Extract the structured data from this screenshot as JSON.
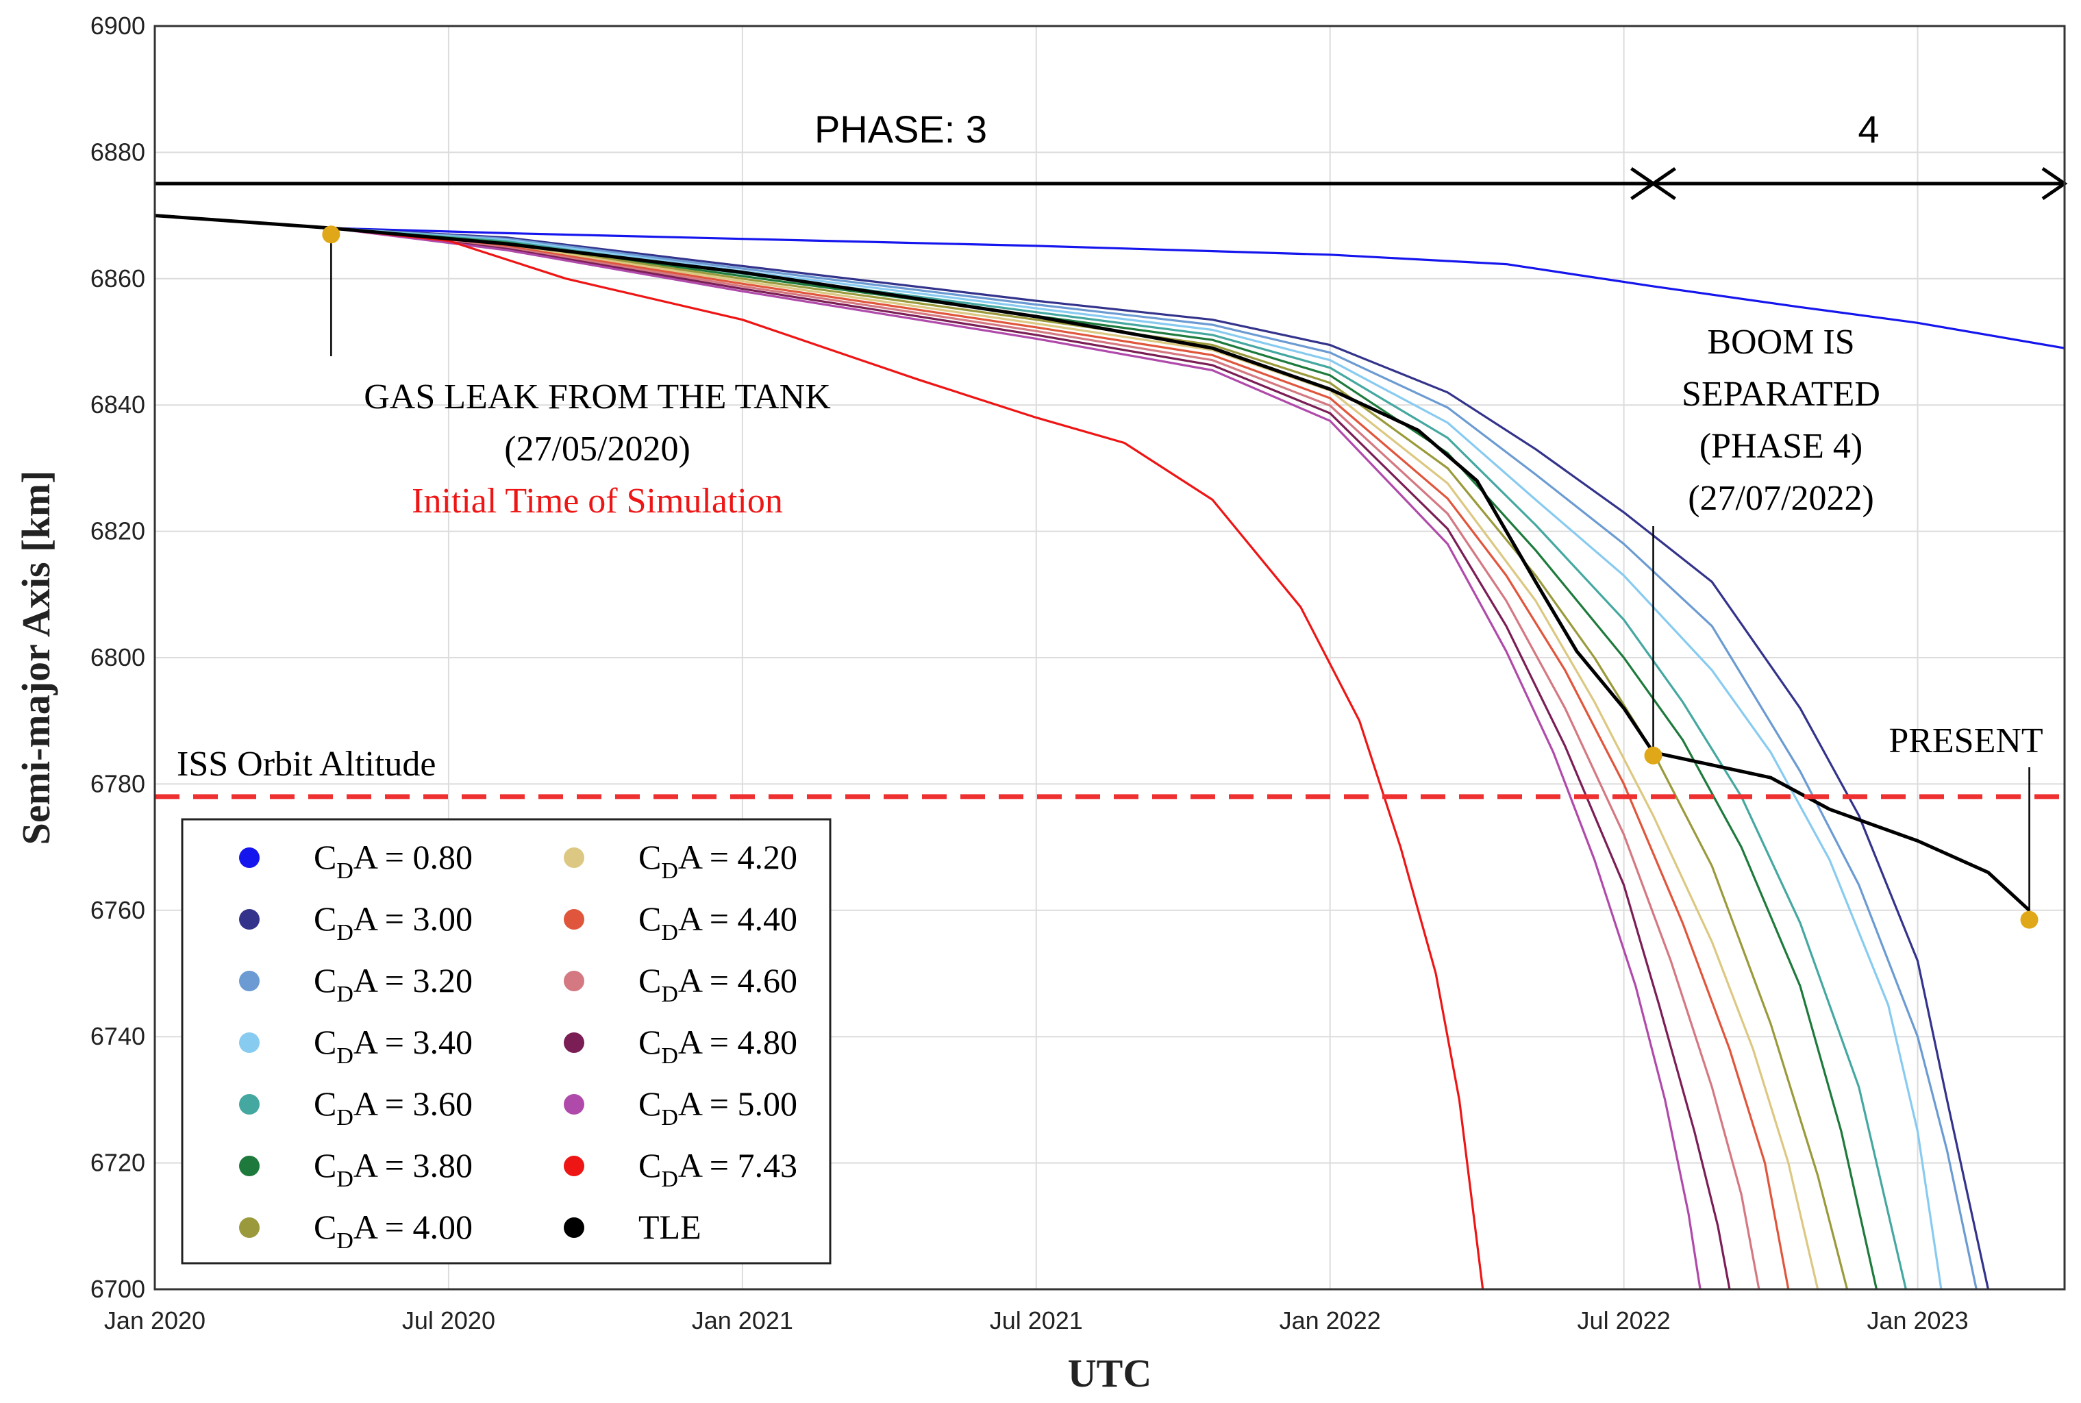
{
  "chart_data": {
    "type": "line",
    "xlabel": "UTC",
    "ylabel": "Semi-major Axis [km]",
    "xlim": [
      2020.0,
      2023.25
    ],
    "ylim": [
      6700,
      6900
    ],
    "y_ticks": [
      6700,
      6720,
      6740,
      6760,
      6780,
      6800,
      6820,
      6840,
      6860,
      6880,
      6900
    ],
    "x_ticks": [
      {
        "value": 2020.0,
        "label": "Jan 2020"
      },
      {
        "value": 2020.5,
        "label": "Jul 2020"
      },
      {
        "value": 2021.0,
        "label": "Jan 2021"
      },
      {
        "value": 2021.5,
        "label": "Jul 2021"
      },
      {
        "value": 2022.0,
        "label": "Jan 2022"
      },
      {
        "value": 2022.5,
        "label": "Jul 2022"
      },
      {
        "value": 2023.0,
        "label": "Jan 2023"
      }
    ],
    "grid": true,
    "legend_position": "bottom-left",
    "series": [
      {
        "name": "CDA = 0.80",
        "value": "0.80",
        "color": "#1515ee",
        "x": [
          2020.0,
          2020.3,
          2020.6,
          2021.0,
          2021.5,
          2022.0,
          2022.3,
          2022.55,
          2022.8,
          2023.0,
          2023.25
        ],
        "y": [
          6870,
          6868,
          6867.2,
          6866.3,
          6865.2,
          6863.8,
          6862.3,
          6858.8,
          6855.5,
          6853.0,
          6849.0
        ]
      },
      {
        "name": "CDA = 3.00",
        "value": "3.00",
        "color": "#33338c",
        "x": [
          2020.0,
          2020.3,
          2020.6,
          2021.0,
          2021.5,
          2021.8,
          2022.0,
          2022.2,
          2022.35,
          2022.5,
          2022.65,
          2022.8,
          2022.9,
          2023.0,
          2023.05,
          2023.12
        ],
        "y": [
          6870,
          6868,
          6866.5,
          6862,
          6856.5,
          6853.5,
          6849.5,
          6842,
          6833,
          6823,
          6812,
          6792,
          6775,
          6752,
          6730,
          6700
        ]
      },
      {
        "name": "CDA = 3.20",
        "value": "3.20",
        "color": "#6b9bd2",
        "x": [
          2020.0,
          2020.3,
          2020.6,
          2021.0,
          2021.5,
          2021.8,
          2022.0,
          2022.2,
          2022.35,
          2022.5,
          2022.65,
          2022.8,
          2022.9,
          2023.0,
          2023.05,
          2023.1
        ],
        "y": [
          6870,
          6868,
          6866.3,
          6861.6,
          6855.9,
          6852.7,
          6848.3,
          6839.6,
          6829,
          6818,
          6805,
          6782,
          6764,
          6740,
          6722,
          6700
        ]
      },
      {
        "name": "CDA = 3.40",
        "value": "3.40",
        "color": "#88cbf0",
        "x": [
          2020.0,
          2020.3,
          2020.6,
          2021.0,
          2021.5,
          2021.8,
          2022.0,
          2022.2,
          2022.35,
          2022.5,
          2022.65,
          2022.75,
          2022.85,
          2022.95,
          2023.0,
          2023.04
        ],
        "y": [
          6870,
          6868,
          6866.1,
          6861.2,
          6855.3,
          6851.9,
          6847.1,
          6837.2,
          6825,
          6813,
          6798,
          6785,
          6768,
          6745,
          6725,
          6700
        ]
      },
      {
        "name": "CDA = 3.60",
        "value": "3.60",
        "color": "#45a8a0",
        "x": [
          2020.0,
          2020.3,
          2020.6,
          2021.0,
          2021.5,
          2021.8,
          2022.0,
          2022.2,
          2022.35,
          2022.5,
          2022.6,
          2022.7,
          2022.8,
          2022.9,
          2022.98
        ],
        "y": [
          6870,
          6868,
          6865.9,
          6860.8,
          6854.7,
          6851.1,
          6845.9,
          6834.8,
          6821,
          6806,
          6793,
          6778,
          6758,
          6732,
          6700
        ]
      },
      {
        "name": "CDA = 3.80",
        "value": "3.80",
        "color": "#1e7a3c",
        "x": [
          2020.0,
          2020.3,
          2020.6,
          2021.0,
          2021.5,
          2021.8,
          2022.0,
          2022.2,
          2022.35,
          2022.5,
          2022.6,
          2022.7,
          2022.8,
          2022.87,
          2022.93
        ],
        "y": [
          6870,
          6868,
          6865.7,
          6860.4,
          6854.1,
          6850.3,
          6844.7,
          6832.4,
          6817,
          6800,
          6787,
          6770,
          6748,
          6725,
          6700
        ]
      },
      {
        "name": "CDA = 4.00",
        "value": "4.00",
        "color": "#9a9a3c",
        "x": [
          2020.0,
          2020.3,
          2020.6,
          2021.0,
          2021.5,
          2021.8,
          2022.0,
          2022.2,
          2022.35,
          2022.45,
          2022.55,
          2022.65,
          2022.75,
          2022.83,
          2022.88
        ],
        "y": [
          6870,
          6868,
          6865.5,
          6860,
          6853.5,
          6849.5,
          6843.5,
          6830,
          6813,
          6800,
          6785,
          6767,
          6742,
          6718,
          6700
        ]
      },
      {
        "name": "CDA = 4.20",
        "value": "4.20",
        "color": "#dcc882",
        "x": [
          2020.0,
          2020.3,
          2020.6,
          2021.0,
          2021.5,
          2021.8,
          2022.0,
          2022.2,
          2022.35,
          2022.45,
          2022.55,
          2022.65,
          2022.72,
          2022.78,
          2022.83
        ],
        "y": [
          6870,
          6868,
          6865.3,
          6859.6,
          6852.9,
          6848.7,
          6842.3,
          6827.6,
          6809,
          6793,
          6775,
          6755,
          6738,
          6720,
          6700
        ]
      },
      {
        "name": "CDA = 4.40",
        "value": "4.40",
        "color": "#e0563c",
        "x": [
          2020.0,
          2020.3,
          2020.6,
          2021.0,
          2021.5,
          2021.8,
          2022.0,
          2022.2,
          2022.3,
          2022.4,
          2022.5,
          2022.6,
          2022.68,
          2022.74,
          2022.78
        ],
        "y": [
          6870,
          6868,
          6865.1,
          6859.2,
          6852.3,
          6847.9,
          6841.1,
          6825.2,
          6813,
          6798,
          6780,
          6758,
          6738,
          6720,
          6700
        ]
      },
      {
        "name": "CDA = 4.60",
        "value": "4.60",
        "color": "#d47882",
        "x": [
          2020.0,
          2020.3,
          2020.6,
          2021.0,
          2021.5,
          2021.8,
          2022.0,
          2022.2,
          2022.3,
          2022.4,
          2022.5,
          2022.58,
          2022.65,
          2022.7,
          2022.73
        ],
        "y": [
          6870,
          6868,
          6864.9,
          6858.8,
          6851.7,
          6847.1,
          6839.9,
          6822.8,
          6809,
          6792,
          6772,
          6752,
          6732,
          6715,
          6700
        ]
      },
      {
        "name": "CDA = 4.80",
        "value": "4.80",
        "color": "#7a1e55",
        "x": [
          2020.0,
          2020.3,
          2020.6,
          2021.0,
          2021.5,
          2021.8,
          2022.0,
          2022.2,
          2022.3,
          2022.4,
          2022.5,
          2022.56,
          2022.62,
          2022.66,
          2022.68
        ],
        "y": [
          6870,
          6868,
          6864.7,
          6858.4,
          6851.1,
          6846.3,
          6838.7,
          6820.4,
          6805,
          6786,
          6764,
          6745,
          6725,
          6710,
          6700
        ]
      },
      {
        "name": "CDA = 5.00",
        "value": "5.00",
        "color": "#b04aaa",
        "x": [
          2020.0,
          2020.3,
          2020.6,
          2021.0,
          2021.5,
          2021.8,
          2022.0,
          2022.2,
          2022.3,
          2022.38,
          2022.45,
          2022.52,
          2022.57,
          2022.61,
          2022.63
        ],
        "y": [
          6870,
          6868,
          6864.5,
          6858,
          6850.5,
          6845.5,
          6837.5,
          6818,
          6801,
          6785,
          6768,
          6748,
          6730,
          6712,
          6700
        ]
      },
      {
        "name": "CDA = 7.43",
        "value": "7.43",
        "color": "#ee1515",
        "x": [
          2020.0,
          2020.3,
          2020.5,
          2020.7,
          2021.0,
          2021.3,
          2021.5,
          2021.65,
          2021.8,
          2021.95,
          2022.05,
          2022.12,
          2022.18,
          2022.22,
          2022.24,
          2022.26
        ],
        "y": [
          6870,
          6868,
          6866,
          6860,
          6853.5,
          6844,
          6838,
          6834,
          6825,
          6808,
          6790,
          6770,
          6750,
          6730,
          6715,
          6700
        ]
      },
      {
        "name": "TLE",
        "value": "TLE",
        "color": "#000000",
        "x": [
          2020.0,
          2020.3,
          2020.6,
          2021.0,
          2021.5,
          2021.8,
          2022.0,
          2022.15,
          2022.25,
          2022.35,
          2022.42,
          2022.5,
          2022.55,
          2022.65,
          2022.75,
          2022.85,
          2023.0,
          2023.12,
          2023.19
        ],
        "y": [
          6870,
          6868,
          6865.5,
          6861,
          6854,
          6849,
          6842.5,
          6836,
          6828,
          6812,
          6801,
          6792,
          6785,
          6783,
          6781,
          6776,
          6771,
          6766,
          6760
        ]
      }
    ],
    "reference_line": {
      "y": 6778,
      "label": "ISS Orbit Altitude",
      "color": "#ee3030"
    },
    "events": [
      {
        "x": 2020.3,
        "y": 6867,
        "color": "#e0a818"
      },
      {
        "x": 2022.55,
        "y": 6784.5,
        "color": "#e0a818"
      },
      {
        "x": 2023.19,
        "y": 6758.5,
        "color": "#e0a818"
      }
    ],
    "phase_arrows": {
      "boundary_x": 2022.55,
      "phase3_label": "PHASE: 3",
      "phase4_label": "4"
    },
    "annotations": {
      "gas_leak_line1": "GAS LEAK FROM THE TANK",
      "gas_leak_line2": "(27/05/2020)",
      "initial_time": "Initial Time of Simulation",
      "boom_line1": "BOOM IS",
      "boom_line2": "SEPARATED",
      "boom_line3": "(PHASE 4)",
      "boom_line4": "(27/07/2022)",
      "present": "PRESENT"
    },
    "legend_prefix_c": "C",
    "legend_prefix_sub": "D",
    "legend_prefix_rest": "A = "
  }
}
